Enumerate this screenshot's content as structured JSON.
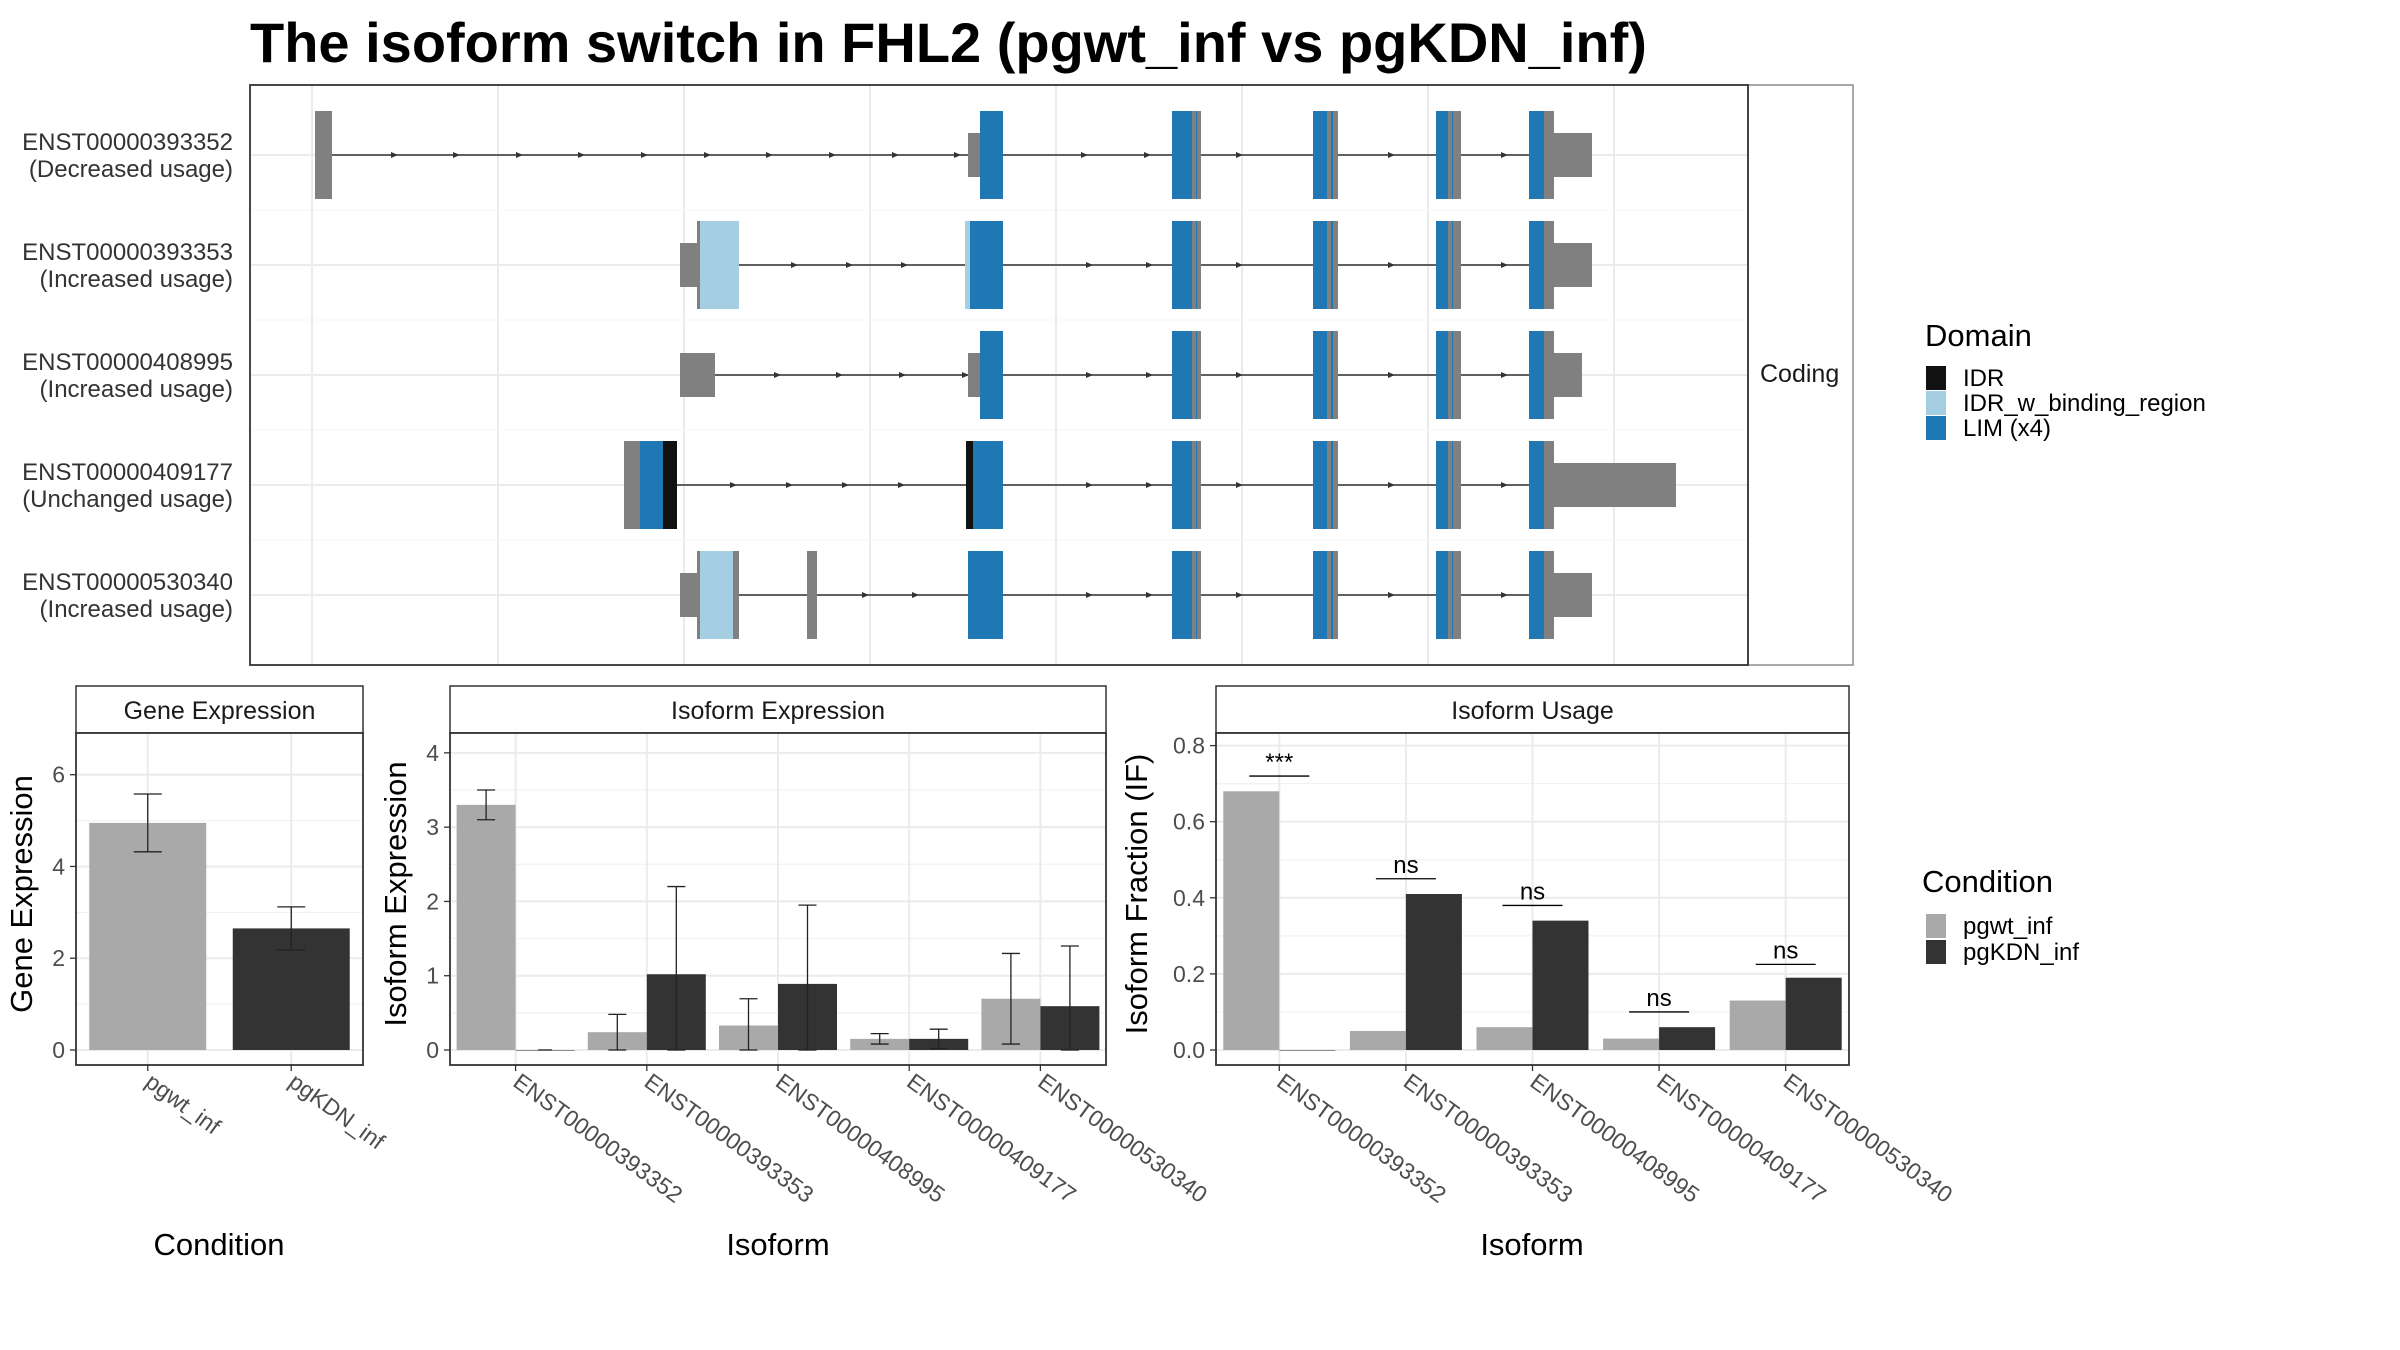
{
  "title": "The isoform switch in FHL2 (pgwt_inf vs pgKDN_inf)",
  "colors": {
    "IDR": "#111111",
    "IDR_w_binding_region": "#a6cee3",
    "LIM (x4)": "#1f78b4",
    "noncoding_exon": "#808080",
    "pgwt_inf": "#a9a9a9",
    "pgKDN_inf": "#333333"
  },
  "structure_panel": {
    "strip_label": "Coding",
    "isoforms": [
      {
        "id": "ENST00000393352",
        "status": "(Decreased usage)"
      },
      {
        "id": "ENST00000393353",
        "status": "(Increased usage)"
      },
      {
        "id": "ENST00000408995",
        "status": "(Increased usage)"
      },
      {
        "id": "ENST00000409177",
        "status": "(Unchanged usage)"
      },
      {
        "id": "ENST00000530340",
        "status": "(Increased usage)"
      }
    ]
  },
  "domain_legend": {
    "title": "Domain",
    "entries": [
      "IDR",
      "IDR_w_binding_region",
      "LIM (x4)"
    ]
  },
  "condition_legend": {
    "title": "Condition",
    "entries": [
      "pgwt_inf",
      "pgKDN_inf"
    ]
  },
  "chart_data": [
    {
      "type": "bar",
      "strip": "Gene Expression",
      "xlabel": "Condition",
      "ylabel": "Gene Expression",
      "ylim": [
        0,
        6.8
      ],
      "yticks": [
        0,
        2,
        4,
        6
      ],
      "categories": [
        "pgwt_inf",
        "pgKDN_inf"
      ],
      "values": [
        4.95,
        2.65
      ],
      "error_low": [
        4.32,
        2.18
      ],
      "error_high": [
        5.58,
        3.12
      ]
    },
    {
      "type": "bar",
      "strip": "Isoform Expression",
      "xlabel": "Isoform",
      "ylabel": "Isoform Expression",
      "ylim": [
        0,
        4.2
      ],
      "yticks": [
        0,
        1,
        2,
        3,
        4
      ],
      "categories": [
        "ENST00000393352",
        "ENST00000393353",
        "ENST00000408995",
        "ENST00000409177",
        "ENST00000530340"
      ],
      "series": [
        {
          "name": "pgwt_inf",
          "values": [
            3.3,
            0.24,
            0.33,
            0.15,
            0.69
          ],
          "error_low": [
            3.1,
            0.0,
            0.0,
            0.08,
            0.08
          ],
          "error_high": [
            3.5,
            0.48,
            0.69,
            0.22,
            1.3
          ]
        },
        {
          "name": "pgKDN_inf",
          "values": [
            0.0,
            1.02,
            0.89,
            0.15,
            0.59
          ],
          "error_low": [
            0.0,
            0.0,
            0.0,
            0.02,
            0.0
          ],
          "error_high": [
            0.0,
            2.2,
            1.95,
            0.28,
            1.4
          ]
        }
      ]
    },
    {
      "type": "bar",
      "strip": "Isoform Usage",
      "xlabel": "Isoform",
      "ylabel": "Isoform Fraction (IF)",
      "ylim": [
        0,
        0.82
      ],
      "yticks": [
        0.0,
        0.2,
        0.4,
        0.6,
        0.8
      ],
      "ytick_labels": [
        "0.0",
        "0.2",
        "0.4",
        "0.6",
        "0.8"
      ],
      "categories": [
        "ENST00000393352",
        "ENST00000393353",
        "ENST00000408995",
        "ENST00000409177",
        "ENST00000530340"
      ],
      "series": [
        {
          "name": "pgwt_inf",
          "values": [
            0.68,
            0.05,
            0.06,
            0.03,
            0.13
          ]
        },
        {
          "name": "pgKDN_inf",
          "values": [
            0.0,
            0.41,
            0.34,
            0.06,
            0.19
          ]
        }
      ],
      "significance": [
        {
          "label": "***",
          "y": 0.72
        },
        {
          "label": "ns",
          "y": 0.45
        },
        {
          "label": "ns",
          "y": 0.38
        },
        {
          "label": "ns",
          "y": 0.1
        },
        {
          "label": "ns",
          "y": 0.225
        }
      ]
    }
  ]
}
